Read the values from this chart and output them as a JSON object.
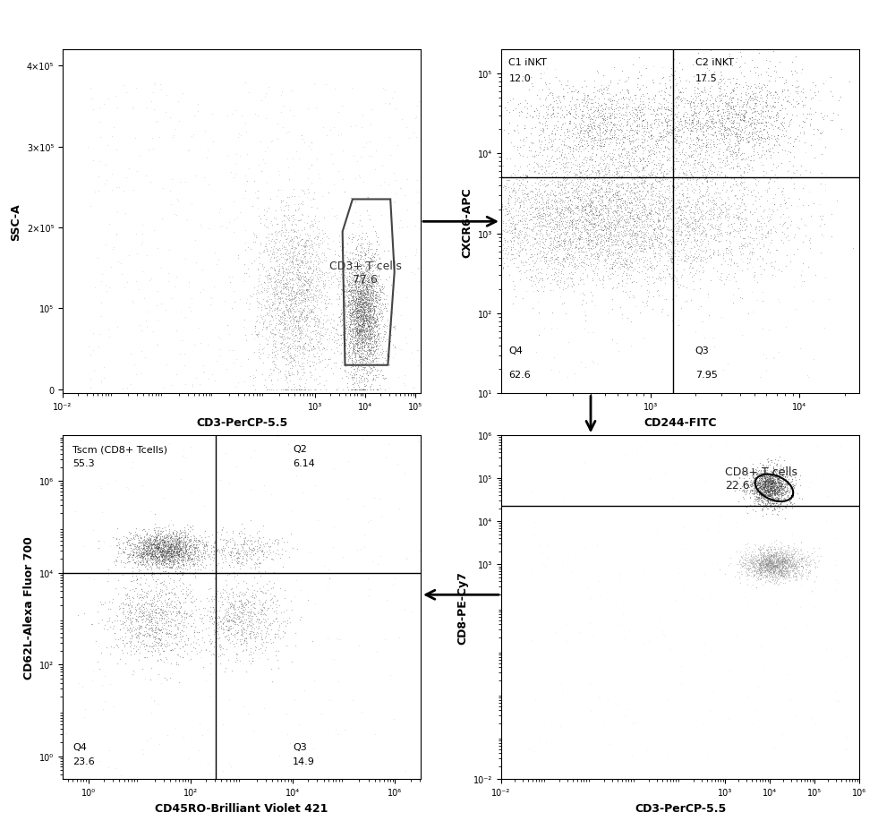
{
  "panel1": {
    "xlabel": "CD3-PerCP-5.5",
    "ylabel": "SSC-A",
    "gate_label": "CD3+ T cells",
    "gate_value": "77.6"
  },
  "panel2": {
    "xlabel": "CD244-FITC",
    "ylabel": "CXCR6-APC",
    "q1_label": "C1 iNKT",
    "q1_value": "12.0",
    "q2_label": "C2 iNKT",
    "q2_value": "17.5",
    "q3_label": "Q3",
    "q3_value": "7.95",
    "q4_label": "Q4",
    "q4_value": "62.6"
  },
  "panel3": {
    "xlabel": "CD3-PerCP-5.5",
    "ylabel": "CD8-PE-Cy7",
    "gate_label": "CD8+ T cells",
    "gate_value": "22.6"
  },
  "panel4": {
    "xlabel": "CD45RO-Brilliant Violet 421",
    "ylabel": "CD62L-Alexa Fluor 700",
    "q1_label": "Tscm (CD8+ Tcells)",
    "q1_value": "55.3",
    "q2_label": "Q2",
    "q2_value": "6.14",
    "q3_label": "Q3",
    "q3_value": "14.9",
    "q4_label": "Q4",
    "q4_value": "23.6"
  },
  "bg_color": "#ffffff",
  "arrow_color": "#000000"
}
